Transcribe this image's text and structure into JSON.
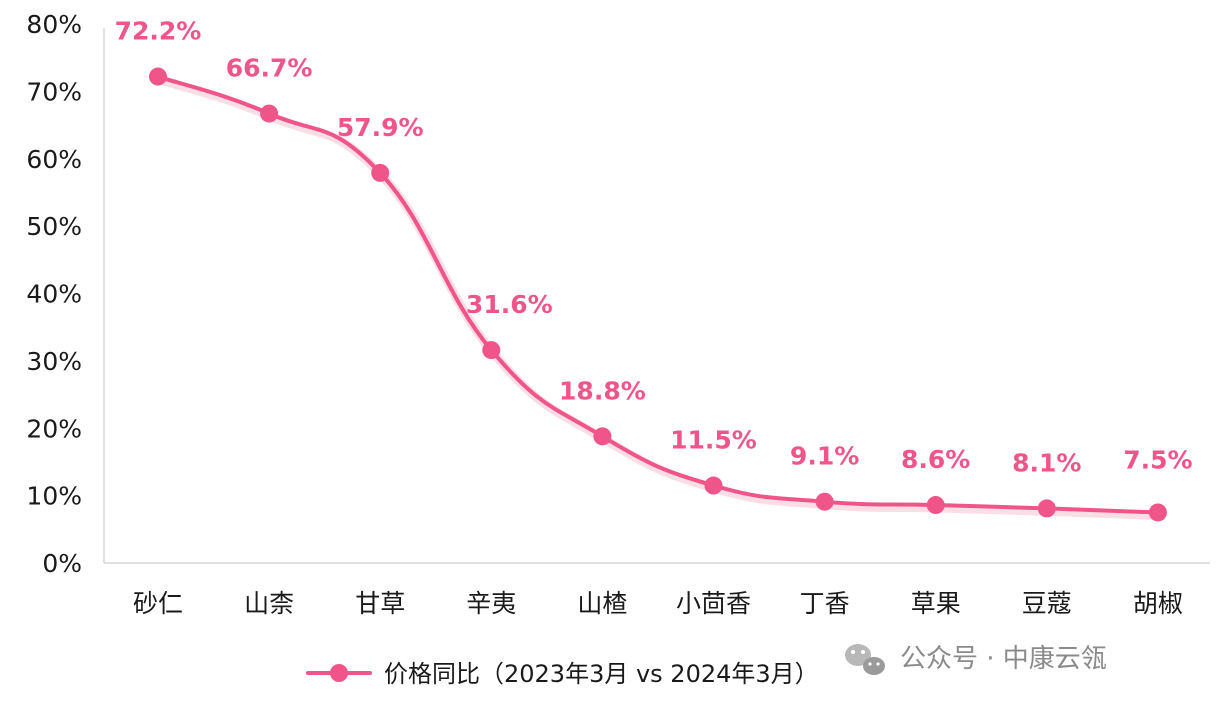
{
  "chart_data": {
    "type": "line",
    "title": "",
    "xlabel": "",
    "ylabel": "",
    "categories": [
      "砂仁",
      "山柰",
      "甘草",
      "辛夷",
      "山楂",
      "小茴香",
      "丁香",
      "草果",
      "豆蔻",
      "胡椒"
    ],
    "series": [
      {
        "name": "价格同比（2023年3月 vs 2024年3月）",
        "values": [
          72.2,
          66.7,
          57.9,
          31.6,
          18.8,
          11.5,
          9.1,
          8.6,
          8.1,
          7.5
        ],
        "color": "#f0558a"
      }
    ],
    "data_labels": [
      "72.2%",
      "66.7%",
      "57.9%",
      "31.6%",
      "18.8%",
      "11.5%",
      "9.1%",
      "8.6%",
      "8.1%",
      "7.5%"
    ],
    "yticks": [
      "0%",
      "10%",
      "20%",
      "30%",
      "40%",
      "50%",
      "60%",
      "70%",
      "80%"
    ],
    "ylim": [
      0,
      80
    ],
    "grid": false,
    "legend_position": "bottom-center",
    "smooth": true
  },
  "watermark": {
    "icon": "wechat-icon",
    "text": "公众号 · 中康云瓴"
  }
}
